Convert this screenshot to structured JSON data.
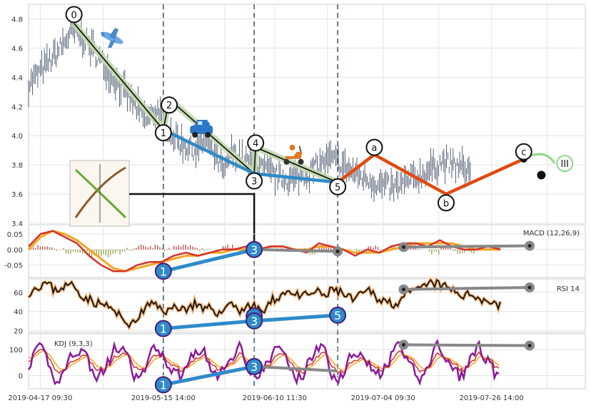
{
  "chart_data": [
    {
      "type": "line",
      "panel": "price",
      "ylim": [
        3.4,
        4.9
      ],
      "yticks": [
        "4.8",
        "4.6",
        "4.4",
        "4.2",
        "4.0",
        "3.8",
        "3.6",
        "3.4"
      ],
      "xticks": [
        "2019-04-17 09:30",
        "2019-05-15 14:00",
        "2019-06-10 11:30",
        "2019-07-04 09:30",
        "2019-07-26 14:00"
      ],
      "price_path": [
        [
          0,
          4.35
        ],
        [
          18,
          4.55
        ],
        [
          30,
          4.72
        ],
        [
          40,
          4.64
        ],
        [
          52,
          4.48
        ],
        [
          62,
          4.34
        ],
        [
          72,
          4.22
        ],
        [
          80,
          4.1
        ],
        [
          88,
          4.18
        ],
        [
          94,
          4.05
        ],
        [
          104,
          3.95
        ],
        [
          114,
          3.9
        ],
        [
          122,
          3.98
        ],
        [
          128,
          3.85
        ],
        [
          134,
          3.74
        ],
        [
          138,
          3.88
        ],
        [
          144,
          3.86
        ],
        [
          152,
          3.8
        ],
        [
          162,
          3.76
        ],
        [
          172,
          3.71
        ],
        [
          180,
          3.7
        ],
        [
          190,
          3.74
        ],
        [
          198,
          3.8
        ],
        [
          206,
          3.84
        ],
        [
          214,
          3.8
        ],
        [
          222,
          3.74
        ],
        [
          232,
          3.7
        ],
        [
          240,
          3.66
        ],
        [
          250,
          3.64
        ],
        [
          258,
          3.68
        ],
        [
          266,
          3.72
        ],
        [
          276,
          3.78
        ],
        [
          282,
          3.82
        ],
        [
          288,
          3.8
        ],
        [
          296,
          3.78
        ],
        [
          302,
          3.76
        ]
      ],
      "wave_labels": [
        {
          "label": "0",
          "x": 31,
          "y": 4.83
        },
        {
          "label": "1",
          "x": 92,
          "y": 4.02
        },
        {
          "label": "2",
          "x": 96,
          "y": 4.21
        },
        {
          "label": "3",
          "x": 154,
          "y": 3.69
        },
        {
          "label": "4",
          "x": 155,
          "y": 3.95
        },
        {
          "label": "5",
          "x": 211,
          "y": 3.65
        },
        {
          "label": "a",
          "x": 236,
          "y": 3.92
        },
        {
          "label": "b",
          "x": 285,
          "y": 3.54
        },
        {
          "label": "c",
          "x": 338,
          "y": 3.89
        },
        {
          "label": "III",
          "x": 366,
          "y": 3.81
        }
      ],
      "motive_wave": [
        [
          31,
          4.77
        ],
        [
          92,
          4.04
        ],
        [
          96,
          4.25
        ],
        [
          154,
          3.74
        ],
        [
          155,
          3.92
        ],
        [
          211,
          3.68
        ]
      ],
      "wave_1_3_5": [
        [
          92,
          4.04
        ],
        [
          154,
          3.74
        ],
        [
          211,
          3.68
        ]
      ],
      "corrective_wave": [
        [
          211,
          3.68
        ],
        [
          236,
          3.87
        ],
        [
          285,
          3.6
        ],
        [
          338,
          3.84
        ]
      ],
      "projection": [
        [
          338,
          3.84
        ],
        [
          366,
          3.81
        ]
      ]
    },
    {
      "type": "line",
      "panel": "macd",
      "legend": "MACD (12,26,9)",
      "ylim": [
        -0.09,
        0.08
      ],
      "yticks": [
        "0.05",
        "0.00",
        "-0.05"
      ],
      "macd": [
        0.01,
        0.05,
        0.06,
        0.04,
        0.02,
        -0.02,
        -0.05,
        -0.07,
        -0.07,
        -0.05,
        -0.04,
        -0.04,
        -0.02,
        -0.01,
        -0.02,
        -0.01,
        0.0,
        0.0,
        0.01,
        0.0,
        0.01,
        0.01,
        0.0,
        -0.01,
        0.02,
        0.01,
        0.0,
        -0.02,
        0.0,
        -0.01,
        0.01,
        0.02,
        0.02,
        0.01,
        0.03,
        0.01,
        0.0,
        0.0,
        0.01,
        0.0
      ],
      "signal": [
        0.0,
        0.04,
        0.06,
        0.05,
        0.03,
        0.0,
        -0.03,
        -0.06,
        -0.07,
        -0.06,
        -0.05,
        -0.04,
        -0.03,
        -0.02,
        -0.02,
        -0.01,
        -0.01,
        0.0,
        0.0,
        0.0,
        0.01,
        0.01,
        0.0,
        0.0,
        0.01,
        0.01,
        0.0,
        -0.01,
        -0.01,
        -0.01,
        0.0,
        0.01,
        0.02,
        0.02,
        0.02,
        0.02,
        0.01,
        0.0,
        0.0,
        0.0
      ],
      "wave_labels": [
        {
          "label": "1",
          "x": 92
        },
        {
          "label": "3",
          "x": 154
        }
      ]
    },
    {
      "type": "line",
      "panel": "rsi",
      "legend": "RSI 14",
      "ylim": [
        18,
        74
      ],
      "yticks": [
        "60",
        "40",
        "20"
      ],
      "rsi": [
        60,
        66,
        70,
        62,
        66,
        68,
        58,
        52,
        48,
        46,
        38,
        30,
        26,
        40,
        48,
        44,
        40,
        46,
        42,
        48,
        40,
        44,
        36,
        52,
        40,
        46,
        44,
        40,
        52,
        58,
        62,
        54,
        58,
        60,
        56,
        64,
        58,
        52,
        56,
        62,
        54,
        50,
        48,
        56,
        60,
        64,
        70,
        68,
        64,
        60,
        56,
        58,
        52,
        50,
        46
      ],
      "wave_labels": [
        {
          "label": "1",
          "x": 92
        },
        {
          "label": "3",
          "x": 154
        },
        {
          "label": "5",
          "x": 211
        }
      ]
    },
    {
      "type": "line",
      "panel": "kdj",
      "legend": "KDJ (9,3,3)",
      "ylim": [
        -50,
        160
      ],
      "yticks": [
        "100",
        "0"
      ],
      "wave_labels": [
        {
          "label": "1",
          "x": 92
        },
        {
          "label": "3",
          "x": 154
        }
      ]
    }
  ]
}
